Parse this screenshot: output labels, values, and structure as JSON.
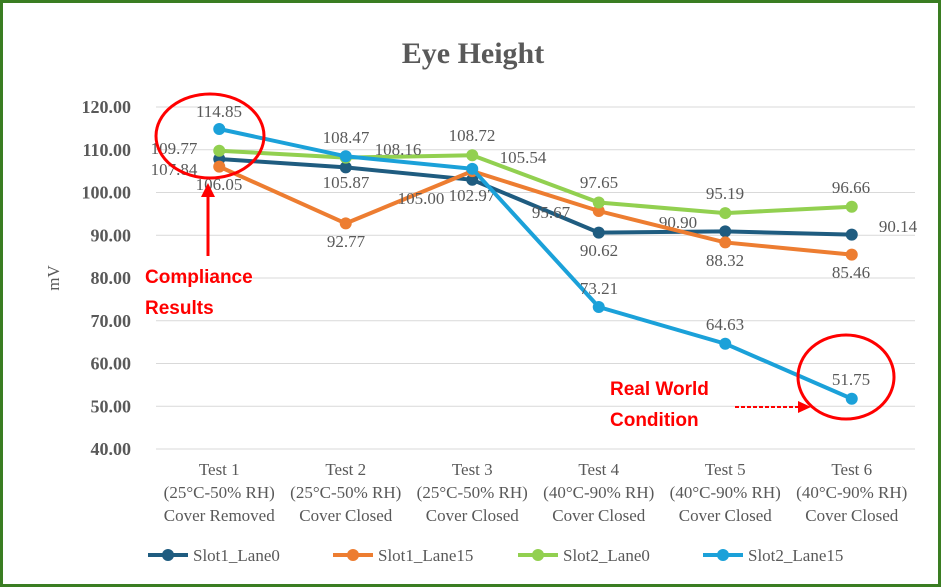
{
  "chart_data": {
    "type": "line",
    "title": "Eye Height",
    "ylabel": "mV",
    "xlabel": "",
    "ylim": [
      40,
      120
    ],
    "yticks": [
      "40.00",
      "50.00",
      "60.00",
      "70.00",
      "80.00",
      "90.00",
      "100.00",
      "110.00",
      "120.00"
    ],
    "grid": true,
    "legend": "bottom",
    "categories": [
      [
        "Test 1",
        "(25°C-50% RH)",
        "Cover Removed"
      ],
      [
        "Test 2",
        "(25°C-50% RH)",
        "Cover Closed"
      ],
      [
        "Test 3",
        "(25°C-50% RH)",
        "Cover Closed"
      ],
      [
        "Test 4",
        "(40°C-90% RH)",
        "Cover Closed"
      ],
      [
        "Test 5",
        "(40°C-90% RH)",
        "Cover Closed"
      ],
      [
        "Test 6",
        "(40°C-90% RH)",
        "Cover Closed"
      ]
    ],
    "series": [
      {
        "name": "Slot1_Lane0",
        "color": "#1f5c80",
        "values": [
          107.84,
          105.87,
          102.97,
          90.62,
          90.9,
          90.14
        ]
      },
      {
        "name": "Slot1_Lane15",
        "color": "#ed7d31",
        "values": [
          106.05,
          92.77,
          105.0,
          95.67,
          88.32,
          85.46
        ]
      },
      {
        "name": "Slot2_Lane0",
        "color": "#92d050",
        "values": [
          109.77,
          108.16,
          108.72,
          97.65,
          95.19,
          96.66
        ]
      },
      {
        "name": "Slot2_Lane15",
        "color": "#1ba1d9",
        "values": [
          114.85,
          108.47,
          105.54,
          73.21,
          64.63,
          51.75
        ]
      }
    ],
    "annotations": [
      {
        "text": [
          "Compliance",
          "Results"
        ],
        "color": "#ff0000"
      },
      {
        "text": [
          "Real World",
          "Condition"
        ],
        "color": "#ff0000"
      }
    ]
  }
}
